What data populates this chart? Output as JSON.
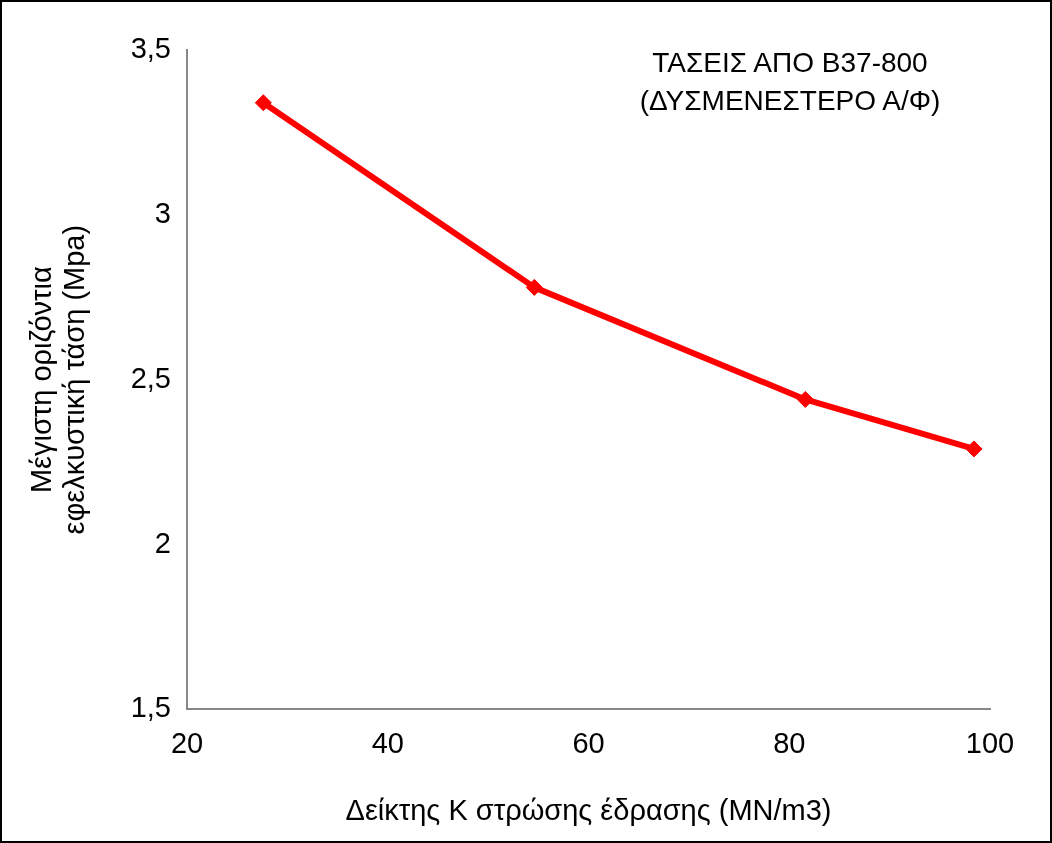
{
  "chart_data": {
    "type": "line",
    "xlabel": "Δείκτης Κ στρώσης έδρασης (MN/m3)",
    "ylabel": "Μέγιστη οριζόντια εφελκυστική τάση (Mpa)",
    "annotations": [
      "ΤΑΣΕΙΣ ΑΠΟ Β37-800",
      "(ΔΥΣΜΕΝΕΣΤΕΡΟ Α/Φ)"
    ],
    "x": [
      27.6,
      54.6,
      81.6,
      98.4
    ],
    "series": [
      {
        "color": "#ff0000",
        "values": [
          3.34,
          2.78,
          2.44,
          2.29
        ]
      }
    ],
    "xlim": [
      20,
      100
    ],
    "xticks": [
      20,
      40,
      60,
      80,
      100
    ],
    "ylim": [
      1.5,
      3.5
    ],
    "yticks": [
      {
        "value": 1.5,
        "label": "1,5"
      },
      {
        "value": 2,
        "label": "2"
      },
      {
        "value": 2.5,
        "label": "2,5"
      },
      {
        "value": 3,
        "label": "3"
      },
      {
        "value": 3.5,
        "label": "3,5"
      }
    ],
    "grid": false,
    "legend": false,
    "marker": "diamond",
    "line_style": "solid"
  }
}
